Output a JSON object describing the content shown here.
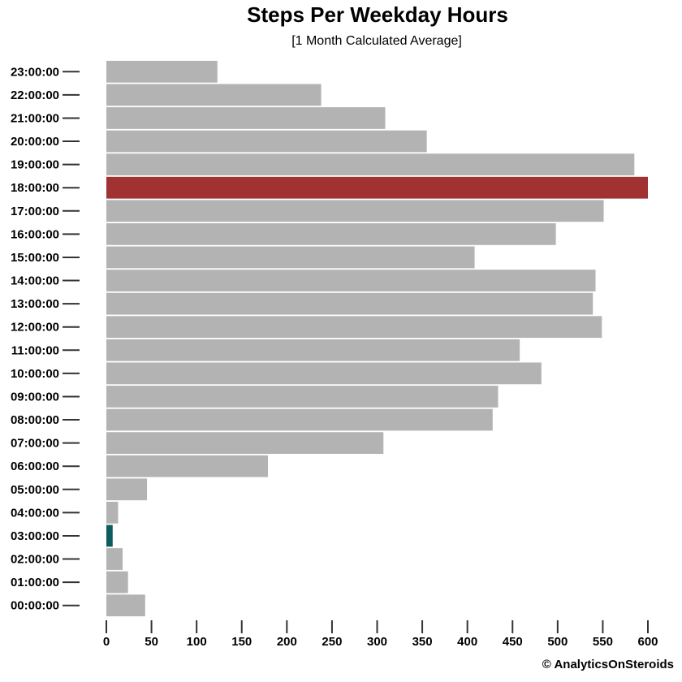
{
  "chart_data": {
    "type": "bar",
    "orientation": "horizontal",
    "title": "Steps Per Weekday Hours",
    "subtitle": "[1 Month Calculated Average]",
    "categories": [
      "00:00:00",
      "01:00:00",
      "02:00:00",
      "03:00:00",
      "04:00:00",
      "05:00:00",
      "06:00:00",
      "07:00:00",
      "08:00:00",
      "09:00:00",
      "10:00:00",
      "11:00:00",
      "12:00:00",
      "13:00:00",
      "14:00:00",
      "15:00:00",
      "16:00:00",
      "17:00:00",
      "18:00:00",
      "19:00:00",
      "20:00:00",
      "21:00:00",
      "22:00:00",
      "23:00:00"
    ],
    "values": [
      43,
      24,
      18,
      7,
      13,
      45,
      179,
      307,
      428,
      434,
      482,
      458,
      549,
      539,
      542,
      408,
      498,
      551,
      600,
      585,
      355,
      309,
      238,
      123
    ],
    "xticks": [
      0,
      50,
      100,
      150,
      200,
      250,
      300,
      350,
      400,
      450,
      500,
      550,
      600
    ],
    "xlim": [
      0,
      600
    ],
    "colors": {
      "default": "#b3b3b3",
      "max": "#a03232",
      "min": "#0f5c5f"
    },
    "max_category": "18:00:00",
    "min_category": "03:00:00"
  },
  "footer": {
    "copyright": "© AnalyticsOnSteroids"
  }
}
